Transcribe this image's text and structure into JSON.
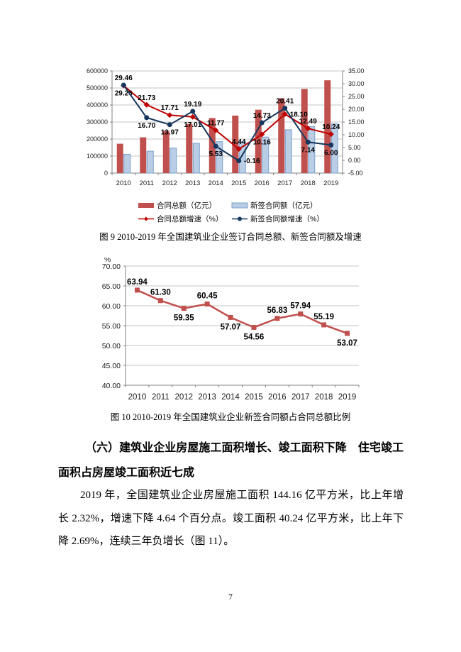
{
  "page": {
    "number": "7"
  },
  "figure9": {
    "caption": "图 9  2010-2019 年全国建筑业企业签订合同总额、新签合同额及增速"
  },
  "figure10": {
    "caption": "图 10  2010-2019 年全国建筑业企业新签合同额占合同总额比例"
  },
  "section": {
    "heading": "（六）建筑业企业房屋施工面积增长、竣工面积下降　住宅竣工面积占房屋竣工面积近七成",
    "paragraph": "2019 年，全国建筑业企业房屋施工面积 144.16 亿平方米，比上年增长 2.32%，增速下降 4.64 个百分点。竣工面积 40.24 亿平方米，比上年下降 2.69%，连续三年负增长（图 11）。"
  },
  "chart_data": [
    {
      "type": "bar",
      "subtype": "combo-bar-line-dual-axis",
      "categories": [
        "2010",
        "2011",
        "2012",
        "2013",
        "2014",
        "2015",
        "2016",
        "2017",
        "2018",
        "2019"
      ],
      "series": [
        {
          "name": "合同总额（亿元）",
          "kind": "bar",
          "axis": "left",
          "color": "#C0504D",
          "values": [
            172600,
            210100,
            247300,
            289400,
            323500,
            337800,
            372200,
            439500,
            494400,
            545000
          ]
        },
        {
          "name": "新签合同额（亿元）",
          "kind": "bar",
          "axis": "left",
          "color": "#B9CDE5",
          "border": "#7BA0CD",
          "values": [
            110400,
            128900,
            146900,
            175100,
            184800,
            184500,
            211700,
            254700,
            272900,
            289200
          ]
        },
        {
          "name": "合同总额增速（%）",
          "kind": "line",
          "axis": "right",
          "color": "#C00000",
          "marker": "diamond",
          "values": [
            29.26,
            21.73,
            17.71,
            17.01,
            11.77,
            4.44,
            10.16,
            18.1,
            12.49,
            10.24
          ],
          "label_pos": [
            "below",
            "above",
            "above",
            "below",
            "above",
            "above",
            "below",
            "right",
            "above",
            "above"
          ]
        },
        {
          "name": "新签合同额增速（%）",
          "kind": "line",
          "axis": "right",
          "color": "#17375D",
          "marker": "circle",
          "values": [
            29.46,
            16.7,
            13.97,
            19.19,
            5.53,
            -0.16,
            14.73,
            20.41,
            7.14,
            6.0
          ],
          "label_pos": [
            "above",
            "below",
            "below",
            "above",
            "below",
            "right",
            "above",
            "above",
            "below",
            "below"
          ]
        }
      ],
      "left_axis": {
        "min": 0,
        "max": 600000,
        "step": 100000
      },
      "right_axis": {
        "min": -5,
        "max": 35,
        "step": 5
      },
      "grid": true,
      "legend_position": "bottom"
    },
    {
      "type": "line",
      "unit_label": "%",
      "categories": [
        "2010",
        "2011",
        "2012",
        "2013",
        "2014",
        "2015",
        "2016",
        "2017",
        "2018",
        "2019"
      ],
      "series": [
        {
          "name": "新签合同额占合同总额比例",
          "color": "#C0504D",
          "marker": "square",
          "values": [
            63.94,
            61.3,
            59.35,
            60.45,
            57.07,
            54.56,
            56.83,
            57.94,
            55.19,
            53.07
          ],
          "label_pos": [
            "above",
            "above",
            "below",
            "above",
            "below",
            "below",
            "above",
            "above",
            "above",
            "below"
          ]
        }
      ],
      "ylim": [
        40,
        70
      ],
      "step": 5,
      "grid": true,
      "legend_position": "none"
    }
  ],
  "colors": {
    "grid": "#C6C6C6",
    "axis": "#808080",
    "bar_total": "#C0504D",
    "bar_new": "#B9CDE5",
    "line_total_growth": "#C00000",
    "line_new_growth": "#17375D"
  }
}
